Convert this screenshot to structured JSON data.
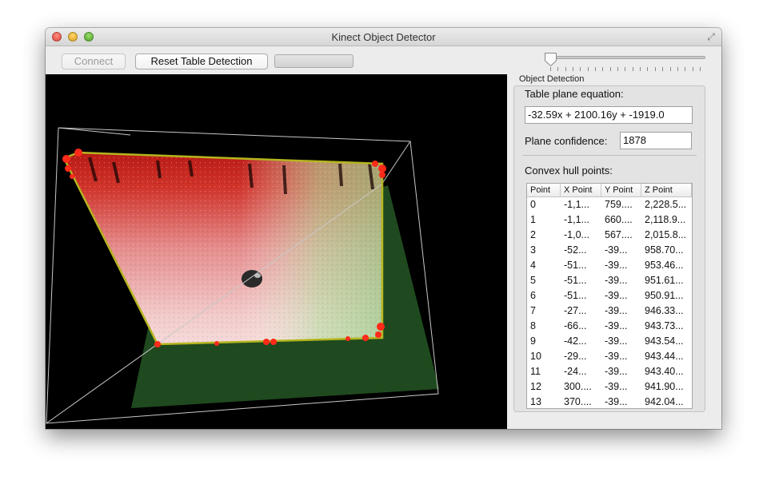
{
  "window": {
    "title": "Kinect Object Detector"
  },
  "toolbar": {
    "connect_label": "Connect",
    "reset_label": "Reset Table Detection",
    "progress_value": 0,
    "slider_value": 0
  },
  "viewport": {
    "background": "#000000",
    "hull_color": "#b5b51f",
    "plane_color": "#1f4a1f",
    "point_color": "#ff2a1a"
  },
  "panel": {
    "group_title": "Object Detection",
    "equation_label": "Table plane equation:",
    "equation_value": "-32.59x + 2100.16y + -1919.0",
    "confidence_label": "Plane confidence:",
    "confidence_value": "1878",
    "hull_label": "Convex hull points:",
    "columns": [
      "Point",
      "X Point",
      "Y Point",
      "Z Point"
    ],
    "rows": [
      [
        "0",
        "-1,1...",
        "759....",
        "2,228.5..."
      ],
      [
        "1",
        "-1,1...",
        "660....",
        "2,118.9..."
      ],
      [
        "2",
        "-1,0...",
        "567....",
        "2,015.8..."
      ],
      [
        "3",
        "-52...",
        "-39...",
        "958.70..."
      ],
      [
        "4",
        "-51...",
        "-39...",
        "953.46..."
      ],
      [
        "5",
        "-51...",
        "-39...",
        "951.61..."
      ],
      [
        "6",
        "-51...",
        "-39...",
        "950.91..."
      ],
      [
        "7",
        "-27...",
        "-39...",
        "946.33..."
      ],
      [
        "8",
        "-66...",
        "-39...",
        "943.73..."
      ],
      [
        "9",
        "-42...",
        "-39...",
        "943.54..."
      ],
      [
        "10",
        "-29...",
        "-39...",
        "943.44..."
      ],
      [
        "11",
        "-24...",
        "-39...",
        "943.40..."
      ],
      [
        "12",
        "300....",
        "-39...",
        "941.90..."
      ],
      [
        "13",
        "370....",
        "-39...",
        "942.04..."
      ]
    ]
  }
}
